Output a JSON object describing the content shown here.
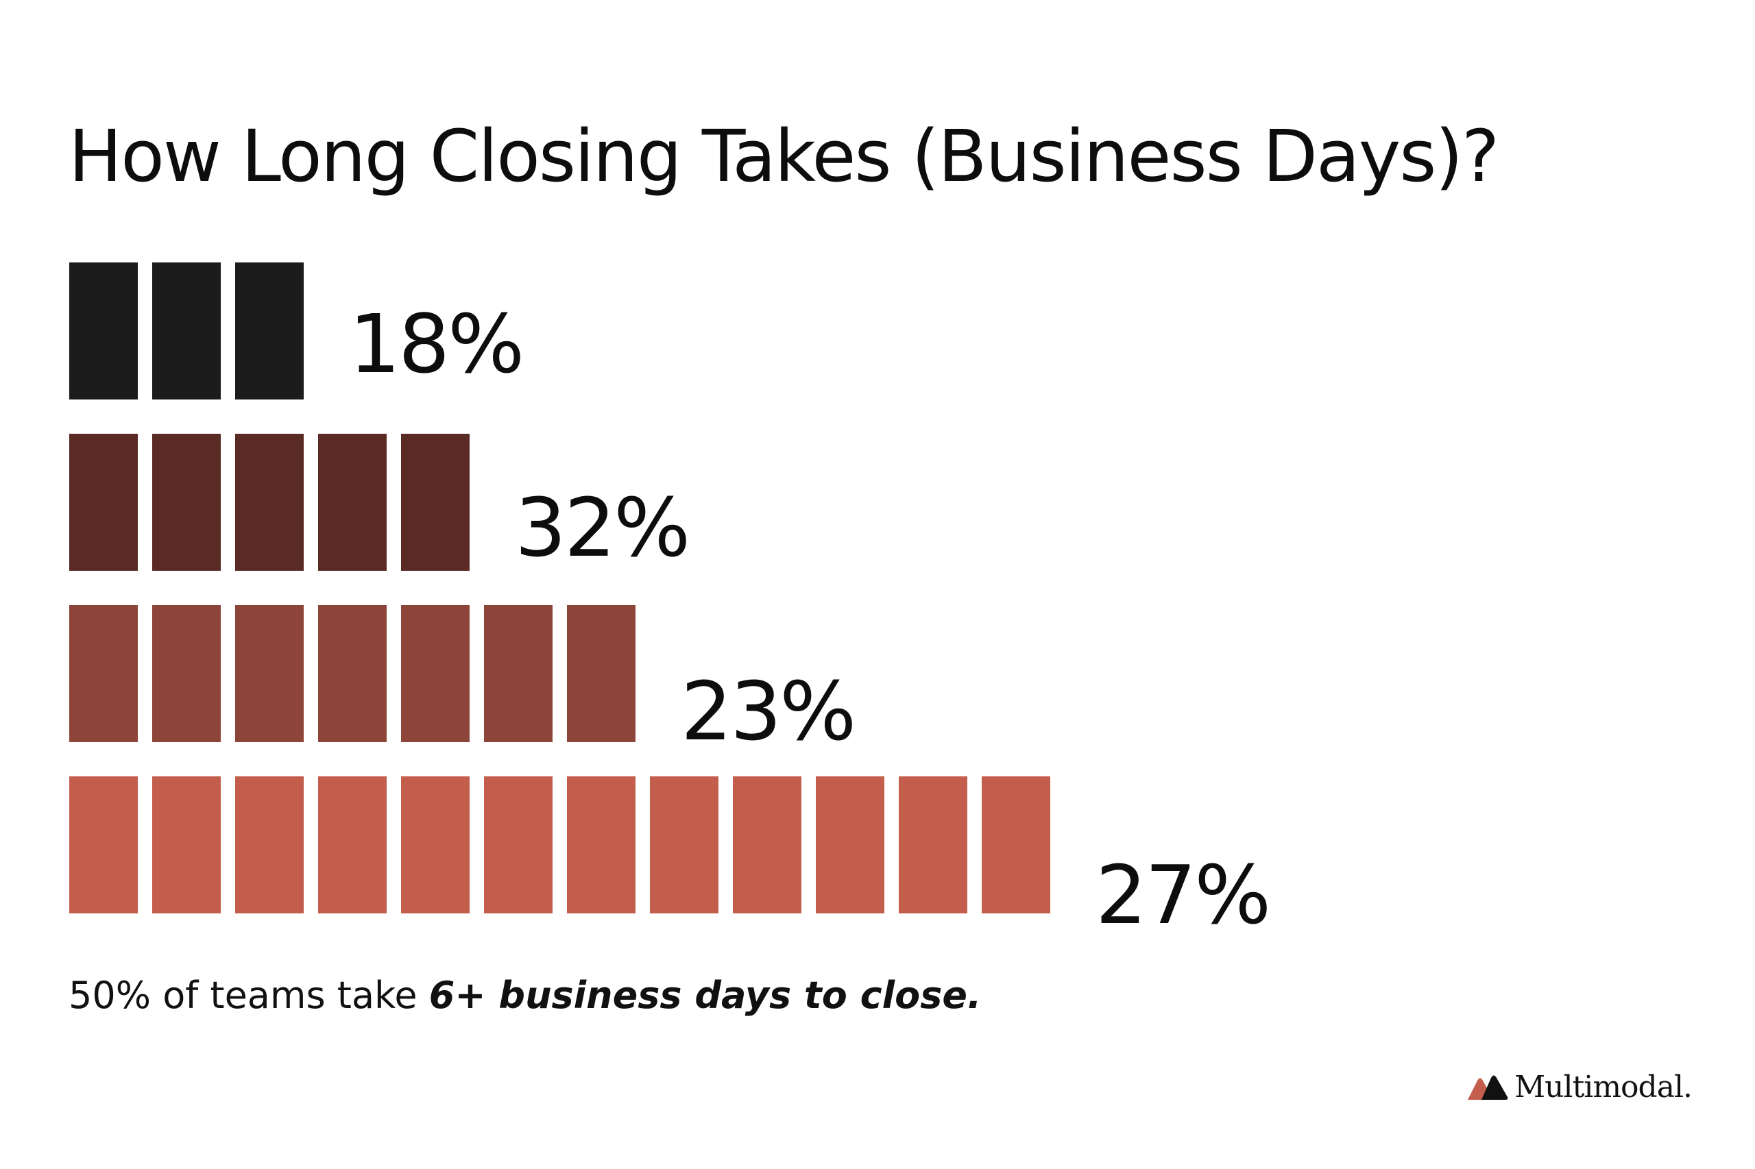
{
  "title": "How Long Closing Takes (Business Days)?",
  "footnote": {
    "prefix": "50% of teams take ",
    "emphasis": "6+ business days to close."
  },
  "brand": {
    "name": "Multimodal.",
    "logo_icon": "multimodal-logo-icon",
    "logo_colors": [
      "#c45e4c",
      "#111111"
    ]
  },
  "chart_data": {
    "type": "bar",
    "orientation": "horizontal",
    "style": "segmented-blocks",
    "values": [
      18,
      32,
      23,
      27
    ],
    "value_labels": [
      "18%",
      "32%",
      "23%",
      "27%"
    ],
    "block_counts": [
      3,
      5,
      7,
      12
    ],
    "colors": [
      "#1c1c1c",
      "#5a2b25",
      "#8e4539",
      "#c35e4c"
    ],
    "title": "How Long Closing Takes (Business Days)?",
    "xlabel": "",
    "ylabel": "",
    "grid": false,
    "legend": "none"
  }
}
